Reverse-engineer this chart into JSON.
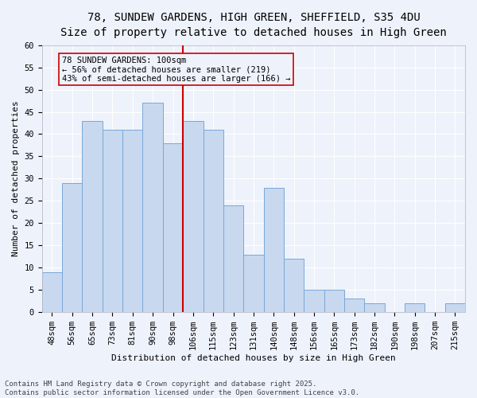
{
  "title_line1": "78, SUNDEW GARDENS, HIGH GREEN, SHEFFIELD, S35 4DU",
  "title_line2": "Size of property relative to detached houses in High Green",
  "xlabel": "Distribution of detached houses by size in High Green",
  "ylabel": "Number of detached properties",
  "categories": [
    "48sqm",
    "56sqm",
    "65sqm",
    "73sqm",
    "81sqm",
    "90sqm",
    "98sqm",
    "106sqm",
    "115sqm",
    "123sqm",
    "131sqm",
    "140sqm",
    "148sqm",
    "156sqm",
    "165sqm",
    "173sqm",
    "182sqm",
    "190sqm",
    "198sqm",
    "207sqm",
    "215sqm"
  ],
  "values": [
    9,
    29,
    43,
    41,
    41,
    47,
    38,
    43,
    41,
    24,
    13,
    28,
    12,
    5,
    5,
    3,
    2,
    0,
    2,
    0,
    2
  ],
  "bar_color": "#c8d8ee",
  "bar_edge_color": "#7aa8d8",
  "vline_x_index": 6.5,
  "vline_color": "#cc0000",
  "annotation_text": "78 SUNDEW GARDENS: 100sqm\n← 56% of detached houses are smaller (219)\n43% of semi-detached houses are larger (166) →",
  "annotation_box_color": "#cc0000",
  "ylim": [
    0,
    60
  ],
  "yticks": [
    0,
    5,
    10,
    15,
    20,
    25,
    30,
    35,
    40,
    45,
    50,
    55,
    60
  ],
  "footnote": "Contains HM Land Registry data © Crown copyright and database right 2025.\nContains public sector information licensed under the Open Government Licence v3.0.",
  "background_color": "#eef2fb",
  "grid_color": "#ffffff",
  "title_fontsize": 10,
  "subtitle_fontsize": 9,
  "axis_label_fontsize": 8,
  "tick_fontsize": 7.5,
  "annotation_fontsize": 7.5,
  "footnote_fontsize": 6.5
}
